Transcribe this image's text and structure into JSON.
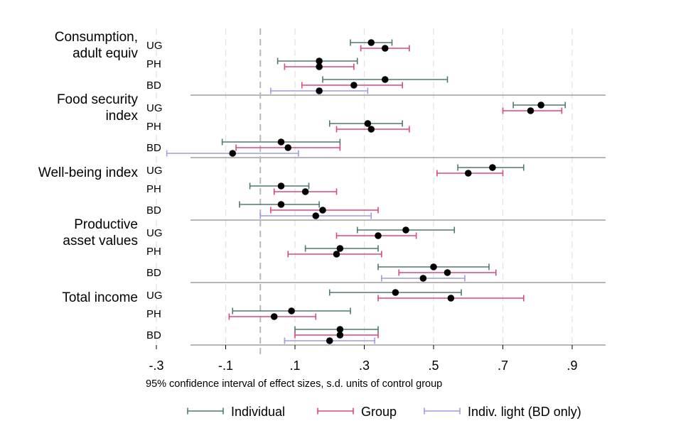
{
  "chart_data": {
    "type": "scatter",
    "subtype": "coefficient-plot-with-95pct-confidence-intervals",
    "xlabel": "95% confidence interval of effect sizes, s.d. units of control group",
    "xlim": [
      -0.3,
      0.9
    ],
    "x_ticks": [
      -0.3,
      -0.1,
      0.1,
      0.3,
      0.5,
      0.7,
      0.9
    ],
    "x_tick_labels": [
      "-.3",
      "-.1",
      ".1",
      ".3",
      ".5",
      ".7",
      ".9"
    ],
    "grid": "vertical dashed at ticks",
    "reference_line_x": 0,
    "legend_position": "bottom",
    "series": [
      {
        "name": "Individual",
        "color": "#4f7a6e"
      },
      {
        "name": "Group",
        "color": "#e0457b"
      },
      {
        "name": "Indiv. light (BD only)",
        "color": "#9e9be0"
      }
    ],
    "panels": [
      {
        "outcome_lines": [
          "Consumption,",
          "adult equiv"
        ],
        "sites": [
          {
            "site": "UG",
            "estimates": [
              {
                "series": "Individual",
                "point": 0.32,
                "ci": [
                  0.26,
                  0.38
                ]
              },
              {
                "series": "Group",
                "point": 0.36,
                "ci": [
                  0.29,
                  0.43
                ]
              }
            ]
          },
          {
            "site": "PH",
            "estimates": [
              {
                "series": "Individual",
                "point": 0.17,
                "ci": [
                  0.05,
                  0.28
                ]
              },
              {
                "series": "Group",
                "point": 0.17,
                "ci": [
                  0.07,
                  0.27
                ]
              }
            ]
          },
          {
            "site": "BD",
            "estimates": [
              {
                "series": "Individual",
                "point": 0.36,
                "ci": [
                  0.18,
                  0.54
                ]
              },
              {
                "series": "Group",
                "point": 0.27,
                "ci": [
                  0.12,
                  0.41
                ]
              },
              {
                "series": "Indiv. light (BD only)",
                "point": 0.17,
                "ci": [
                  0.03,
                  0.31
                ]
              }
            ]
          }
        ]
      },
      {
        "outcome_lines": [
          "Food security",
          "index"
        ],
        "sites": [
          {
            "site": "UG",
            "estimates": [
              {
                "series": "Individual",
                "point": 0.81,
                "ci": [
                  0.73,
                  0.88
                ]
              },
              {
                "series": "Group",
                "point": 0.78,
                "ci": [
                  0.7,
                  0.87
                ]
              }
            ]
          },
          {
            "site": "PH",
            "estimates": [
              {
                "series": "Individual",
                "point": 0.31,
                "ci": [
                  0.2,
                  0.41
                ]
              },
              {
                "series": "Group",
                "point": 0.32,
                "ci": [
                  0.22,
                  0.43
                ]
              }
            ]
          },
          {
            "site": "BD",
            "estimates": [
              {
                "series": "Individual",
                "point": 0.06,
                "ci": [
                  -0.11,
                  0.23
                ]
              },
              {
                "series": "Group",
                "point": 0.08,
                "ci": [
                  -0.07,
                  0.23
                ]
              },
              {
                "series": "Indiv. light (BD only)",
                "point": -0.08,
                "ci": [
                  -0.27,
                  0.11
                ]
              }
            ]
          }
        ]
      },
      {
        "outcome_lines": [
          "Well-being index"
        ],
        "sites": [
          {
            "site": "UG",
            "estimates": [
              {
                "series": "Individual",
                "point": 0.67,
                "ci": [
                  0.57,
                  0.76
                ]
              },
              {
                "series": "Group",
                "point": 0.6,
                "ci": [
                  0.51,
                  0.7
                ]
              }
            ]
          },
          {
            "site": "PH",
            "estimates": [
              {
                "series": "Individual",
                "point": 0.06,
                "ci": [
                  -0.03,
                  0.14
                ]
              },
              {
                "series": "Group",
                "point": 0.13,
                "ci": [
                  0.04,
                  0.22
                ]
              }
            ]
          },
          {
            "site": "BD",
            "estimates": [
              {
                "series": "Individual",
                "point": 0.06,
                "ci": [
                  -0.06,
                  0.17
                ]
              },
              {
                "series": "Group",
                "point": 0.18,
                "ci": [
                  0.03,
                  0.34
                ]
              },
              {
                "series": "Indiv. light (BD only)",
                "point": 0.16,
                "ci": [
                  0.0,
                  0.32
                ]
              }
            ]
          }
        ]
      },
      {
        "outcome_lines": [
          "Productive",
          "asset values"
        ],
        "sites": [
          {
            "site": "UG",
            "estimates": [
              {
                "series": "Individual",
                "point": 0.42,
                "ci": [
                  0.28,
                  0.56
                ]
              },
              {
                "series": "Group",
                "point": 0.34,
                "ci": [
                  0.22,
                  0.45
                ]
              }
            ]
          },
          {
            "site": "PH",
            "estimates": [
              {
                "series": "Individual",
                "point": 0.23,
                "ci": [
                  0.13,
                  0.34
                ]
              },
              {
                "series": "Group",
                "point": 0.22,
                "ci": [
                  0.08,
                  0.35
                ]
              }
            ]
          },
          {
            "site": "BD",
            "estimates": [
              {
                "series": "Individual",
                "point": 0.5,
                "ci": [
                  0.34,
                  0.66
                ]
              },
              {
                "series": "Group",
                "point": 0.54,
                "ci": [
                  0.4,
                  0.68
                ]
              },
              {
                "series": "Indiv. light (BD only)",
                "point": 0.47,
                "ci": [
                  0.35,
                  0.59
                ]
              }
            ]
          }
        ]
      },
      {
        "outcome_lines": [
          "Total income"
        ],
        "sites": [
          {
            "site": "UG",
            "estimates": [
              {
                "series": "Individual",
                "point": 0.39,
                "ci": [
                  0.2,
                  0.58
                ]
              },
              {
                "series": "Group",
                "point": 0.55,
                "ci": [
                  0.34,
                  0.76
                ]
              }
            ]
          },
          {
            "site": "PH",
            "estimates": [
              {
                "series": "Individual",
                "point": 0.09,
                "ci": [
                  -0.08,
                  0.26
                ]
              },
              {
                "series": "Group",
                "point": 0.04,
                "ci": [
                  -0.09,
                  0.16
                ]
              }
            ]
          },
          {
            "site": "BD",
            "estimates": [
              {
                "series": "Individual",
                "point": 0.23,
                "ci": [
                  0.1,
                  0.34
                ]
              },
              {
                "series": "Group",
                "point": 0.23,
                "ci": [
                  0.1,
                  0.34
                ]
              },
              {
                "series": "Indiv. light (BD only)",
                "point": 0.2,
                "ci": [
                  0.07,
                  0.33
                ]
              }
            ]
          }
        ]
      }
    ]
  }
}
